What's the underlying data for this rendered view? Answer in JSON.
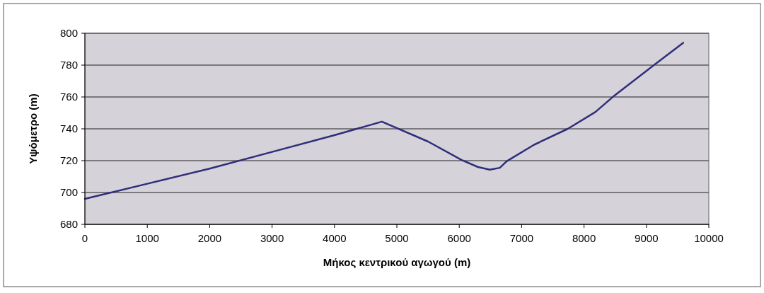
{
  "chart_data": {
    "type": "line",
    "xlabel": "Μήκος κεντρικού αγωγού (m)",
    "ylabel": "Υψόμετρο (m)",
    "x": [
      0,
      1000,
      2000,
      3000,
      4000,
      4760,
      5500,
      6040,
      6300,
      6490,
      6650,
      6760,
      7200,
      7740,
      8180,
      8470,
      9120,
      9590
    ],
    "series": [
      {
        "color": "#2e2e7a",
        "values": [
          696,
          705.5,
          715,
          725.5,
          736,
          744.5,
          732,
          720.4,
          716,
          714.3,
          715.5,
          719.6,
          730,
          740,
          750.5,
          760.3,
          780,
          794
        ]
      }
    ],
    "xlim": [
      0,
      10000
    ],
    "xticks": [
      0,
      1000,
      2000,
      3000,
      4000,
      5000,
      6000,
      7000,
      8000,
      9000,
      10000
    ],
    "ylim": [
      680,
      800
    ],
    "yticks": [
      680,
      700,
      720,
      740,
      760,
      780,
      800
    ],
    "grid": "y",
    "marker": "none",
    "line_style": "solid"
  }
}
